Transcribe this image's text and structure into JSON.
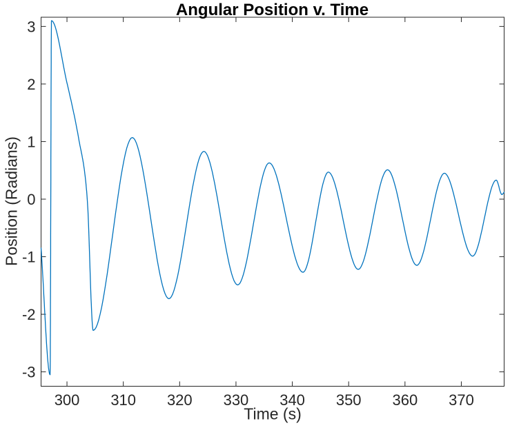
{
  "figure": {
    "background": "#ffffff"
  },
  "chart_data": {
    "type": "line",
    "title": "Angular Position v. Time",
    "xlabel": "Time (s)",
    "ylabel": "Position (Radians)",
    "xlim": [
      295.4,
      377.6
    ],
    "ylim": [
      -3.25,
      3.16
    ],
    "x_ticks": [
      300,
      310,
      320,
      330,
      340,
      350,
      360,
      370
    ],
    "y_ticks": [
      -3,
      -2,
      -1,
      0,
      1,
      2,
      3
    ],
    "grid": false,
    "legend": "none",
    "line_color": "#0072BD",
    "axis_color": "#262626",
    "series": [
      {
        "name": "angular-position",
        "description": "damped pendulum oscillation with initial phase wrap near t=297 s; keypoints are [time_s, position_rad, type] where type e=extremum, p=pass-through sample",
        "keypoints": [
          [
            295.4,
            -0.85,
            "p"
          ],
          [
            297.0,
            -3.05,
            "e"
          ],
          [
            297.25,
            3.1,
            "e"
          ],
          [
            300.0,
            2.02,
            "p"
          ],
          [
            302.1,
            1.04,
            "p"
          ],
          [
            303.6,
            0.0,
            "p"
          ],
          [
            304.65,
            -2.28,
            "e"
          ],
          [
            311.6,
            1.07,
            "e"
          ],
          [
            318.1,
            -1.73,
            "e"
          ],
          [
            324.3,
            0.83,
            "e"
          ],
          [
            330.3,
            -1.49,
            "e"
          ],
          [
            335.9,
            0.63,
            "e"
          ],
          [
            341.9,
            -1.27,
            "e"
          ],
          [
            346.4,
            0.47,
            "e"
          ],
          [
            351.7,
            -1.22,
            "e"
          ],
          [
            356.9,
            0.51,
            "e"
          ],
          [
            362.1,
            -1.15,
            "e"
          ],
          [
            367.0,
            0.45,
            "e"
          ],
          [
            372.0,
            -0.99,
            "e"
          ],
          [
            376.2,
            0.33,
            "e"
          ],
          [
            377.2,
            0.08,
            "e"
          ],
          [
            377.6,
            0.12,
            "p"
          ]
        ]
      }
    ]
  }
}
